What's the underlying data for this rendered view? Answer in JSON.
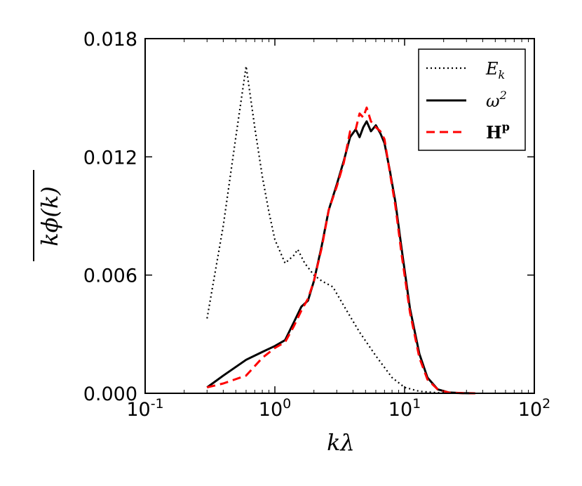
{
  "chart_data": {
    "type": "line",
    "xscale": "log",
    "xlim": [
      0.1,
      100
    ],
    "ylim": [
      0,
      0.018
    ],
    "xticks": [
      {
        "value": 0.1,
        "base": "10",
        "exp": "-1"
      },
      {
        "value": 1,
        "base": "10",
        "exp": "0"
      },
      {
        "value": 10,
        "base": "10",
        "exp": "1"
      },
      {
        "value": 100,
        "base": "10",
        "exp": "2"
      }
    ],
    "yticks": [
      {
        "value": 0,
        "label": "0.000"
      },
      {
        "value": 0.006,
        "label": "0.006"
      },
      {
        "value": 0.012,
        "label": "0.012"
      },
      {
        "value": 0.018,
        "label": "0.018"
      }
    ],
    "xlabel": "kλ",
    "ylabel": "kϕ(k)",
    "legend_position": "top-right",
    "grid": false,
    "series": [
      {
        "name": "E",
        "name_sub": "k",
        "color": "#000000",
        "style": "dotted",
        "x": [
          0.3,
          0.4,
          0.5,
          0.6,
          0.7,
          0.8,
          0.9,
          1.0,
          1.2,
          1.4,
          1.5,
          1.7,
          2.0,
          2.3,
          2.8,
          3.5,
          4.5,
          6.0,
          8.0,
          10.0,
          13.0,
          18.0,
          25.0,
          35.0
        ],
        "y": [
          0.0038,
          0.0085,
          0.013,
          0.0166,
          0.0135,
          0.011,
          0.0092,
          0.0078,
          0.0066,
          0.007,
          0.0073,
          0.0066,
          0.006,
          0.0057,
          0.0054,
          0.0043,
          0.0031,
          0.0019,
          0.0008,
          0.0003,
          0.0001,
          3e-05,
          1e-05,
          0.0
        ]
      },
      {
        "name": "ω",
        "name_sup": "2",
        "color": "#000000",
        "style": "solid",
        "x": [
          0.3,
          0.4,
          0.6,
          0.8,
          1.0,
          1.2,
          1.4,
          1.6,
          1.8,
          2.0,
          2.3,
          2.6,
          3.0,
          3.4,
          3.8,
          4.2,
          4.5,
          4.8,
          5.1,
          5.5,
          6.0,
          6.5,
          7.0,
          7.7,
          8.5,
          9.5,
          11.0,
          13.0,
          15.0,
          18.0,
          22.0,
          28.0,
          35.0
        ],
        "y": [
          0.0003,
          0.0009,
          0.0017,
          0.0021,
          0.0024,
          0.0027,
          0.0036,
          0.0044,
          0.0047,
          0.0057,
          0.0075,
          0.0093,
          0.0106,
          0.0118,
          0.013,
          0.0134,
          0.013,
          0.0135,
          0.0138,
          0.0133,
          0.0136,
          0.0132,
          0.0127,
          0.0113,
          0.0097,
          0.0073,
          0.0043,
          0.002,
          0.0008,
          0.0002,
          4e-05,
          1e-05,
          0.0
        ]
      },
      {
        "name": "H",
        "name_sup": "p",
        "color": "#ff0000",
        "style": "dashed",
        "x": [
          0.3,
          0.4,
          0.6,
          0.8,
          1.0,
          1.2,
          1.4,
          1.6,
          1.8,
          2.0,
          2.3,
          2.6,
          3.0,
          3.4,
          3.8,
          4.2,
          4.5,
          4.8,
          5.1,
          5.5,
          6.0,
          6.5,
          7.0,
          7.7,
          8.5,
          9.5,
          11.0,
          13.0,
          15.0,
          18.0,
          22.0,
          28.0,
          35.0
        ],
        "y": [
          0.0003,
          0.0005,
          0.0009,
          0.0018,
          0.0023,
          0.0026,
          0.0034,
          0.0042,
          0.0048,
          0.0057,
          0.0074,
          0.0093,
          0.0105,
          0.0117,
          0.0133,
          0.0134,
          0.0142,
          0.014,
          0.0145,
          0.0138,
          0.0135,
          0.0133,
          0.0129,
          0.0112,
          0.0095,
          0.007,
          0.0041,
          0.0018,
          0.0007,
          0.0002,
          3e-05,
          1e-05,
          0.0
        ]
      }
    ]
  }
}
